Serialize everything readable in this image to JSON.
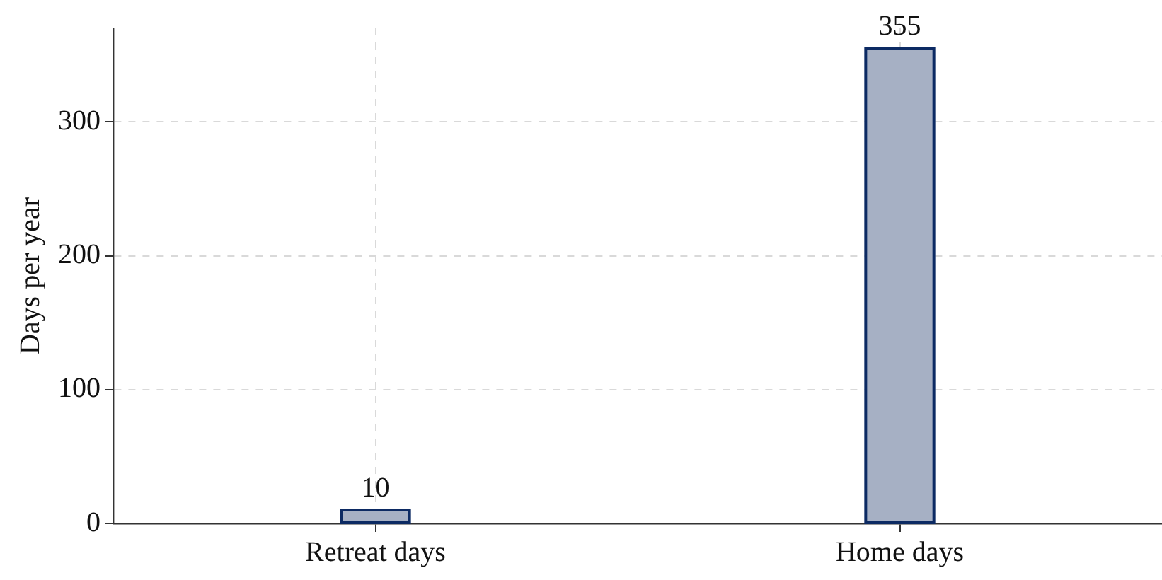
{
  "chart_data": {
    "type": "bar",
    "ylabel": "Days per year",
    "categories": [
      "Retreat days",
      "Home days"
    ],
    "values": [
      10,
      355
    ],
    "color": "#a6b0c4",
    "ylim": [
      0,
      370
    ],
    "yticks": [
      0,
      100,
      200,
      300
    ],
    "grid": true,
    "data_labels": true
  }
}
